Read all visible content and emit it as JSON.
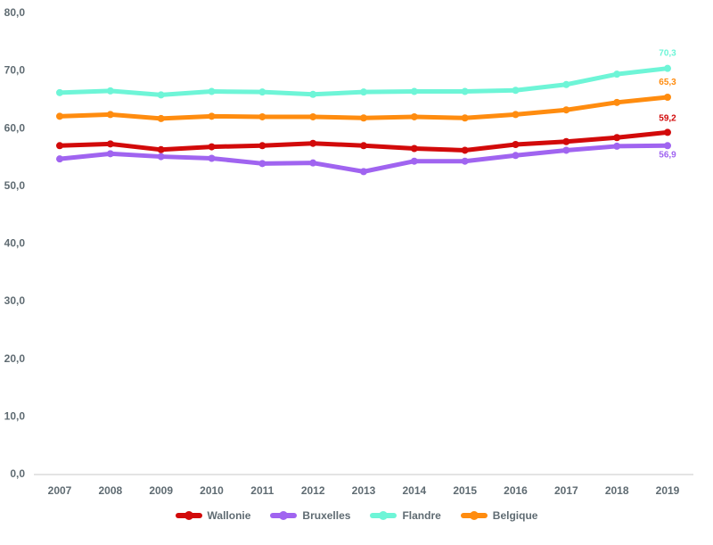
{
  "chart_data": {
    "type": "line",
    "categories": [
      "2007",
      "2008",
      "2009",
      "2010",
      "2011",
      "2012",
      "2013",
      "2014",
      "2015",
      "2016",
      "2017",
      "2018",
      "2019"
    ],
    "ylim": [
      0,
      80
    ],
    "yticks": [
      "0,0",
      "10,0",
      "20,0",
      "30,0",
      "40,0",
      "50,0",
      "60,0",
      "70,0",
      "80,0"
    ],
    "grid": false,
    "legend_position": "bottom",
    "series": [
      {
        "name": "Wallonie",
        "color": "#d20a0a",
        "values": [
          56.9,
          57.2,
          56.2,
          56.7,
          56.9,
          57.3,
          56.9,
          56.4,
          56.1,
          57.1,
          57.6,
          58.3,
          59.2
        ],
        "end_label": "59,2"
      },
      {
        "name": "Bruxelles",
        "color": "#a064f0",
        "values": [
          54.6,
          55.5,
          55.0,
          54.7,
          53.8,
          53.9,
          52.4,
          54.2,
          54.2,
          55.2,
          56.1,
          56.8,
          56.9
        ],
        "end_label": "56,9"
      },
      {
        "name": "Flandre",
        "color": "#6ef5d7",
        "values": [
          66.1,
          66.4,
          65.7,
          66.3,
          66.2,
          65.8,
          66.2,
          66.3,
          66.3,
          66.5,
          67.5,
          69.3,
          70.3
        ],
        "end_label": "70,3"
      },
      {
        "name": "Belgique",
        "color": "#ff8c0f",
        "values": [
          62.0,
          62.3,
          61.6,
          62.0,
          61.9,
          61.9,
          61.7,
          61.9,
          61.7,
          62.3,
          63.1,
          64.4,
          65.3
        ],
        "end_label": "65,3"
      }
    ]
  }
}
